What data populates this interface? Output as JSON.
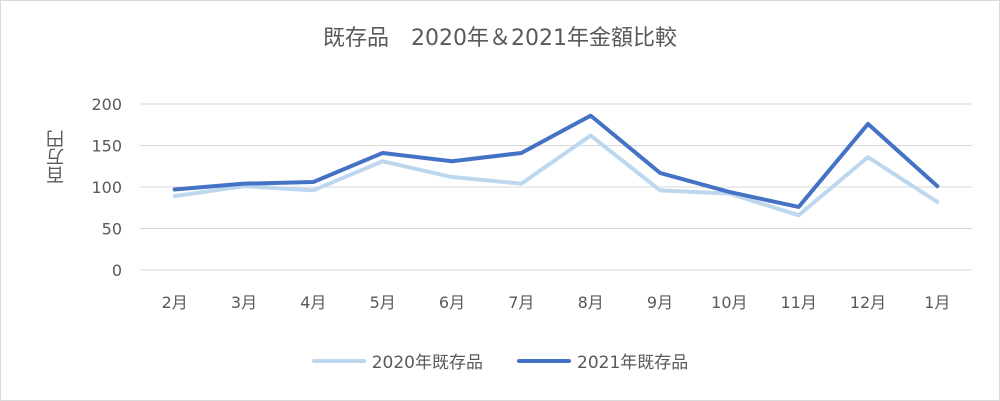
{
  "chart_data": {
    "type": "line",
    "title": "既存品　2020年＆2021年金額比較",
    "ylabel": "百万円",
    "categories": [
      "2月",
      "3月",
      "4月",
      "5月",
      "6月",
      "7月",
      "8月",
      "9月",
      "10月",
      "11月",
      "12月",
      "1月"
    ],
    "ylim": [
      0,
      200
    ],
    "yticks": [
      0,
      50,
      100,
      150,
      200
    ],
    "grid": true,
    "legend_position": "bottom",
    "series": [
      {
        "name": "2020年既存品",
        "color": "#bdd7ee",
        "values": [
          89,
          101,
          96,
          131,
          112,
          104,
          162,
          96,
          92,
          66,
          136,
          82
        ]
      },
      {
        "name": "2021年既存品",
        "color": "#4472c4",
        "values": [
          97,
          104,
          106,
          141,
          131,
          141,
          186,
          117,
          94,
          76,
          176,
          101
        ]
      }
    ]
  }
}
